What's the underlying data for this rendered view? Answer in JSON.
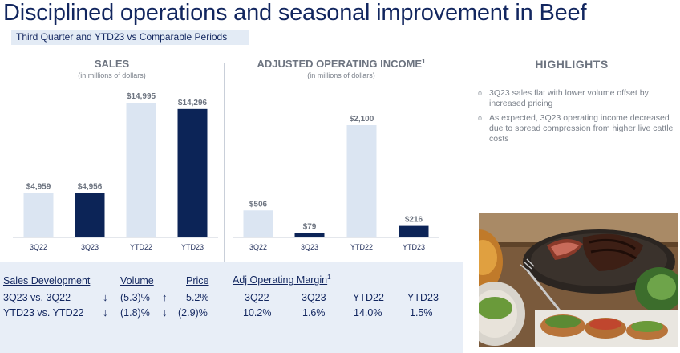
{
  "page": {
    "title": "Disciplined operations and seasonal improvement in Beef",
    "subtitle": "Third Quarter and YTD23 vs Comparable Periods"
  },
  "chart_data": [
    {
      "type": "bar",
      "title": "SALES",
      "subtitle": "(in millions of dollars)",
      "categories": [
        "3Q22",
        "3Q23",
        "YTD22",
        "YTD23"
      ],
      "values": [
        4959,
        4956,
        14995,
        14296
      ],
      "value_labels": [
        "$4,959",
        "$4,956",
        "$14,995",
        "$14,296"
      ],
      "colors": [
        "#dbe5f2",
        "#0c2457",
        "#dbe5f2",
        "#0c2457"
      ],
      "ylim": [
        0,
        14995
      ]
    },
    {
      "type": "bar",
      "title": "ADJUSTED OPERATING INCOME",
      "title_superscript": "1",
      "subtitle": "(in millions of dollars)",
      "categories": [
        "3Q22",
        "3Q23",
        "YTD22",
        "YTD23"
      ],
      "values": [
        506,
        79,
        2100,
        216
      ],
      "value_labels": [
        "$506",
        "$79",
        "$2,100",
        "$216"
      ],
      "colors": [
        "#dbe5f2",
        "#0c2457",
        "#dbe5f2",
        "#0c2457"
      ],
      "ylim": [
        0,
        2100
      ]
    }
  ],
  "sales_table": {
    "headers": [
      "Sales Development",
      "Volume",
      "Price"
    ],
    "rows": [
      {
        "label": "3Q23 vs. 3Q22",
        "volume_arrow": "↓",
        "volume": "(5.3)%",
        "price_arrow": "↑",
        "price": "5.2%"
      },
      {
        "label": "YTD23 vs. YTD22",
        "volume_arrow": "↓",
        "volume": "(1.8)%",
        "price_arrow": "↓",
        "price": "(2.9)%"
      }
    ]
  },
  "margin_table": {
    "title": "Adj Operating Margin",
    "title_superscript": "1",
    "headers": [
      "3Q22",
      "3Q23",
      "YTD22",
      "YTD23"
    ],
    "values": [
      "10.2%",
      "1.6%",
      "14.0%",
      "1.5%"
    ]
  },
  "highlights": {
    "title": "HIGHLIGHTS",
    "items": [
      "3Q23 sales flat with lower volume offset by increased pricing",
      "As expected, 3Q23 operating income decreased due to spread compression from higher live cattle costs"
    ],
    "bullet": "o"
  }
}
